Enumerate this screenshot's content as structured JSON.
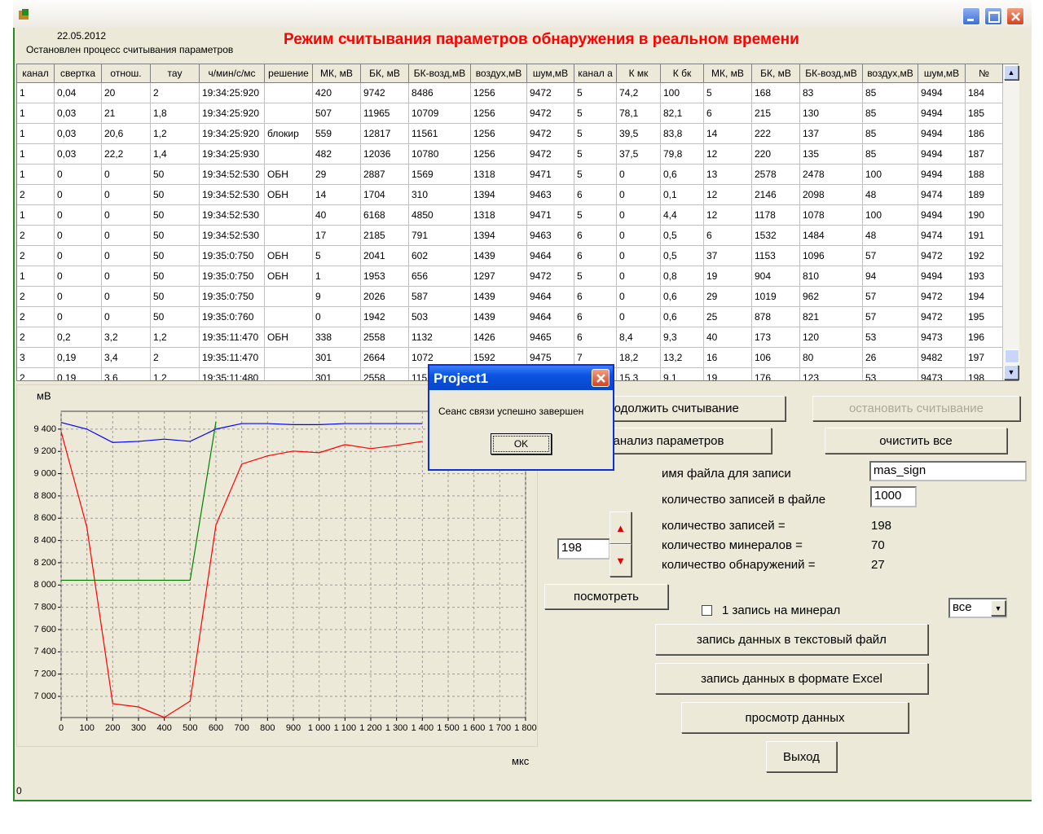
{
  "window": {
    "date": "22.05.2012",
    "status": "Остановлен процесс считывания параметров",
    "title": "Режим считывания параметров обнаружения в реальном времени",
    "status_bar": "0"
  },
  "table": {
    "headers": [
      "канал",
      "свертка",
      "отнош.",
      "тау",
      "ч/мин/с/мс",
      "решение",
      "МК, мВ",
      "БК, мВ",
      "БК-возд,мВ",
      "воздух,мВ",
      "шум,мВ",
      "канал а",
      "К мк",
      "К бк",
      "МК, мВ",
      "БК, мВ",
      "БК-возд,мВ",
      "воздух,мВ",
      "шум,мВ",
      "№"
    ],
    "rows": [
      [
        "1",
        "0,04",
        "20",
        "2",
        "19:34:25:920",
        null,
        "420",
        "9742",
        "8486",
        "1256",
        "9472",
        "5",
        "74,2",
        "100",
        "5",
        "168",
        "83",
        "85",
        "9494",
        "184"
      ],
      [
        "1",
        "0,03",
        "21",
        "1,8",
        "19:34:25:920",
        null,
        "507",
        "11965",
        "10709",
        "1256",
        "9472",
        "5",
        "78,1",
        "82,1",
        "6",
        "215",
        "130",
        "85",
        "9494",
        "185"
      ],
      [
        "1",
        "0,03",
        "20,6",
        "1,2",
        "19:34:25:920",
        "блокир",
        "559",
        "12817",
        "11561",
        "1256",
        "9472",
        "5",
        "39,5",
        "83,8",
        "14",
        "222",
        "137",
        "85",
        "9494",
        "186"
      ],
      [
        "1",
        "0,03",
        "22,2",
        "1,4",
        "19:34:25:930",
        null,
        "482",
        "12036",
        "10780",
        "1256",
        "9472",
        "5",
        "37,5",
        "79,8",
        "12",
        "220",
        "135",
        "85",
        "9494",
        "187"
      ],
      [
        "1",
        "0",
        "0",
        "50",
        "19:34:52:530",
        "ОБН",
        "29",
        "2887",
        "1569",
        "1318",
        "9471",
        "5",
        "0",
        "0,6",
        "13",
        "2578",
        "2478",
        "100",
        "9494",
        "188"
      ],
      [
        "2",
        "0",
        "0",
        "50",
        "19:34:52:530",
        "ОБН",
        "14",
        "1704",
        "310",
        "1394",
        "9463",
        "6",
        "0",
        "0,1",
        "12",
        "2146",
        "2098",
        "48",
        "9474",
        "189"
      ],
      [
        "1",
        "0",
        "0",
        "50",
        "19:34:52:530",
        null,
        "40",
        "6168",
        "4850",
        "1318",
        "9471",
        "5",
        "0",
        "4,4",
        "12",
        "1178",
        "1078",
        "100",
        "9494",
        "190"
      ],
      [
        "2",
        "0",
        "0",
        "50",
        "19:34:52:530",
        null,
        "17",
        "2185",
        "791",
        "1394",
        "9463",
        "6",
        "0",
        "0,5",
        "6",
        "1532",
        "1484",
        "48",
        "9474",
        "191"
      ],
      [
        "2",
        "0",
        "0",
        "50",
        "19:35:0:750",
        "ОБН",
        "5",
        "2041",
        "602",
        "1439",
        "9464",
        "6",
        "0",
        "0,5",
        "37",
        "1153",
        "1096",
        "57",
        "9472",
        "192"
      ],
      [
        "1",
        "0",
        "0",
        "50",
        "19:35:0:750",
        "ОБН",
        "1",
        "1953",
        "656",
        "1297",
        "9472",
        "5",
        "0",
        "0,8",
        "19",
        "904",
        "810",
        "94",
        "9494",
        "193"
      ],
      [
        "2",
        "0",
        "0",
        "50",
        "19:35:0:750",
        null,
        "9",
        "2026",
        "587",
        "1439",
        "9464",
        "6",
        "0",
        "0,6",
        "29",
        "1019",
        "962",
        "57",
        "9472",
        "194"
      ],
      [
        "2",
        "0",
        "0",
        "50",
        "19:35:0:760",
        null,
        "0",
        "1942",
        "503",
        "1439",
        "9464",
        "6",
        "0",
        "0,6",
        "25",
        "878",
        "821",
        "57",
        "9472",
        "195"
      ],
      [
        "2",
        "0,2",
        "3,2",
        "1,2",
        "19:35:11:470",
        "ОБН",
        "338",
        "2558",
        "1132",
        "1426",
        "9465",
        "6",
        "8,4",
        "9,3",
        "40",
        "173",
        "120",
        "53",
        "9473",
        "196"
      ],
      [
        "3",
        "0,19",
        "3,4",
        "2",
        "19:35:11:470",
        null,
        "301",
        "2664",
        "1072",
        "1592",
        "9475",
        "7",
        "18,2",
        "13,2",
        "16",
        "106",
        "80",
        "26",
        "9482",
        "197"
      ],
      [
        "2",
        "0,19",
        "3,6",
        "1,2",
        "19:35:11:480",
        null,
        "301",
        "2558",
        "115",
        null,
        null,
        null,
        "15,3",
        "9,1",
        "19",
        "176",
        "123",
        "53",
        "9473",
        "198"
      ]
    ]
  },
  "chart_data": {
    "type": "line",
    "y_unit": "мВ",
    "x_unit": "мкс",
    "x": [
      0,
      100,
      200,
      300,
      400,
      500,
      600,
      700,
      800,
      900,
      1000,
      1100,
      1200,
      1300,
      1400,
      1500,
      1600,
      1700,
      1800
    ],
    "series": [
      {
        "color": "#0000ff",
        "values": [
          9460,
          9400,
          9280,
          9290,
          9310,
          9290,
          9400,
          9450,
          9450,
          9440,
          9440,
          9450,
          9450,
          9450,
          9450,
          null,
          null,
          null,
          null
        ]
      },
      {
        "color": "#ff0000",
        "values": [
          9378,
          8517,
          6935,
          6905,
          6811,
          6957,
          8539,
          9086,
          9160,
          9203,
          9188,
          9261,
          9225,
          9254,
          9290,
          null,
          null,
          null,
          null
        ]
      },
      {
        "color": "#008000",
        "values": [
          8043,
          8043,
          8043,
          8043,
          8043,
          8043,
          9466,
          null,
          null,
          null,
          null,
          null,
          null,
          null,
          null,
          null,
          null,
          null,
          null
        ]
      }
    ],
    "xlim": [
      0,
      1800
    ],
    "ylim": [
      6810,
      9560
    ],
    "xticks": [
      0,
      100,
      200,
      300,
      400,
      500,
      600,
      700,
      800,
      900,
      {
        "value": 1000,
        "label": "1 000"
      },
      {
        "value": 1100,
        "label": "1 100"
      },
      {
        "value": 1200,
        "label": "1 200"
      },
      {
        "value": 1300,
        "label": "1 300"
      },
      {
        "value": 1400,
        "label": "1 400"
      },
      {
        "value": 1500,
        "label": "1 500"
      },
      {
        "value": 1600,
        "label": "1 600"
      },
      {
        "value": 1700,
        "label": "1 700"
      },
      {
        "value": 1800,
        "label": "1 800"
      }
    ],
    "yticks": [
      {
        "value": 7000,
        "label": "7 000"
      },
      {
        "value": 7200,
        "label": "7 200"
      },
      {
        "value": 7400,
        "label": "7 400"
      },
      {
        "value": 7600,
        "label": "7 600"
      },
      {
        "value": 7800,
        "label": "7 800"
      },
      {
        "value": 8000,
        "label": "8 000"
      },
      {
        "value": 8200,
        "label": "8 200"
      },
      {
        "value": 8400,
        "label": "8 400"
      },
      {
        "value": 8600,
        "label": "8 600"
      },
      {
        "value": 8800,
        "label": "8 800"
      },
      {
        "value": 9000,
        "label": "9 000"
      },
      {
        "value": 9200,
        "label": "9 200"
      },
      {
        "value": 9400,
        "label": "9 400"
      }
    ],
    "grid": true
  },
  "controls": {
    "continue": "продолжить считывание",
    "stop": "остановить считывание",
    "analysis": "анализ параметров",
    "clear": "очистить все",
    "file_name_label": "имя файла для записи",
    "file_name": "mas_sign",
    "records_in_file_label": "количество записей в файле",
    "records_in_file": "1000",
    "counts": [
      {
        "label": "количество записей =",
        "value": 198
      },
      {
        "label": "количество минералов =",
        "value": 70
      },
      {
        "label": "количество обнаружений =",
        "value": 27
      }
    ],
    "spinner": "198",
    "view": "посмотреть",
    "checkbox": "1 запись на минерал",
    "dropdown": "все",
    "save_text": "запись данных  в текстовый файл",
    "save_excel": "запись данных  в формате Excel",
    "browse": "просмотр данных",
    "exit": "Выход"
  },
  "dialog": {
    "title": "Project1",
    "message": "Сеанс связи успешно завершен",
    "ok": "OK"
  }
}
